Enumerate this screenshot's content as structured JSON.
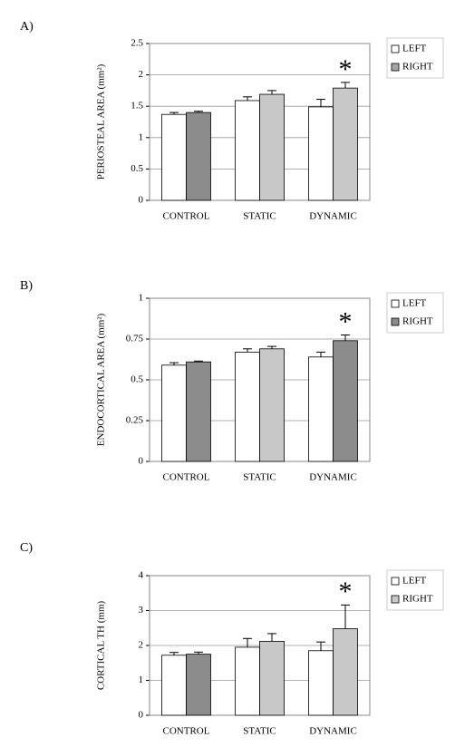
{
  "chart_data": [
    {
      "type": "bar",
      "panel_label": "A)",
      "ylabel": "PERIOSTEAL AREA (mm²)",
      "categories": [
        "CONTROL",
        "STATIC",
        "DYNAMIC"
      ],
      "series": [
        {
          "name": "LEFT",
          "color": "#ffffff",
          "colors": [
            "#ffffff",
            "#ffffff",
            "#ffffff"
          ],
          "values": [
            1.37,
            1.59,
            1.49
          ],
          "errors": [
            0.03,
            0.06,
            0.12
          ]
        },
        {
          "name": "RIGHT",
          "color": "#a6a6a6",
          "colors": [
            "#8c8c8c",
            "#c8c8c8",
            "#c8c8c8"
          ],
          "values": [
            1.4,
            1.69,
            1.79
          ],
          "errors": [
            0.02,
            0.06,
            0.09
          ]
        }
      ],
      "ylim": [
        0,
        2.5
      ],
      "yticks": [
        0,
        0.5,
        1,
        1.5,
        2,
        2.5
      ],
      "grid": true,
      "annotations": [
        {
          "text": "*",
          "category": "DYNAMIC"
        }
      ]
    },
    {
      "type": "bar",
      "panel_label": "B)",
      "ylabel": "ENDOCORTICAL AREA (mm²)",
      "categories": [
        "CONTROL",
        "STATIC",
        "DYNAMIC"
      ],
      "series": [
        {
          "name": "LEFT",
          "color": "#ffffff",
          "colors": [
            "#ffffff",
            "#ffffff",
            "#ffffff"
          ],
          "values": [
            0.59,
            0.67,
            0.64
          ],
          "errors": [
            0.015,
            0.02,
            0.03
          ]
        },
        {
          "name": "RIGHT",
          "color": "#8c8c8c",
          "colors": [
            "#8c8c8c",
            "#c8c8c8",
            "#8c8c8c"
          ],
          "values": [
            0.61,
            0.69,
            0.74
          ],
          "errors": [
            0.005,
            0.015,
            0.035
          ]
        }
      ],
      "ylim": [
        0,
        1
      ],
      "yticks": [
        0,
        0.25,
        0.5,
        0.75,
        1
      ],
      "grid": true,
      "annotations": [
        {
          "text": "*",
          "category": "DYNAMIC"
        }
      ]
    },
    {
      "type": "bar",
      "panel_label": "C)",
      "ylabel": "CORTICAL TH (mm)",
      "categories": [
        "CONTROL",
        "STATIC",
        "DYNAMIC"
      ],
      "series": [
        {
          "name": "LEFT",
          "color": "#ffffff",
          "colors": [
            "#ffffff",
            "#ffffff",
            "#ffffff"
          ],
          "values": [
            1.72,
            1.95,
            1.85
          ],
          "errors": [
            0.08,
            0.25,
            0.25
          ]
        },
        {
          "name": "RIGHT",
          "color": "#c8c8c8",
          "colors": [
            "#8c8c8c",
            "#c8c8c8",
            "#c8c8c8"
          ],
          "values": [
            1.75,
            2.12,
            2.48
          ],
          "errors": [
            0.06,
            0.22,
            0.68
          ]
        }
      ],
      "ylim": [
        0,
        4
      ],
      "yticks": [
        0,
        1,
        2,
        3,
        4
      ],
      "grid": true,
      "annotations": [
        {
          "text": "*",
          "category": "DYNAMIC"
        }
      ]
    }
  ]
}
